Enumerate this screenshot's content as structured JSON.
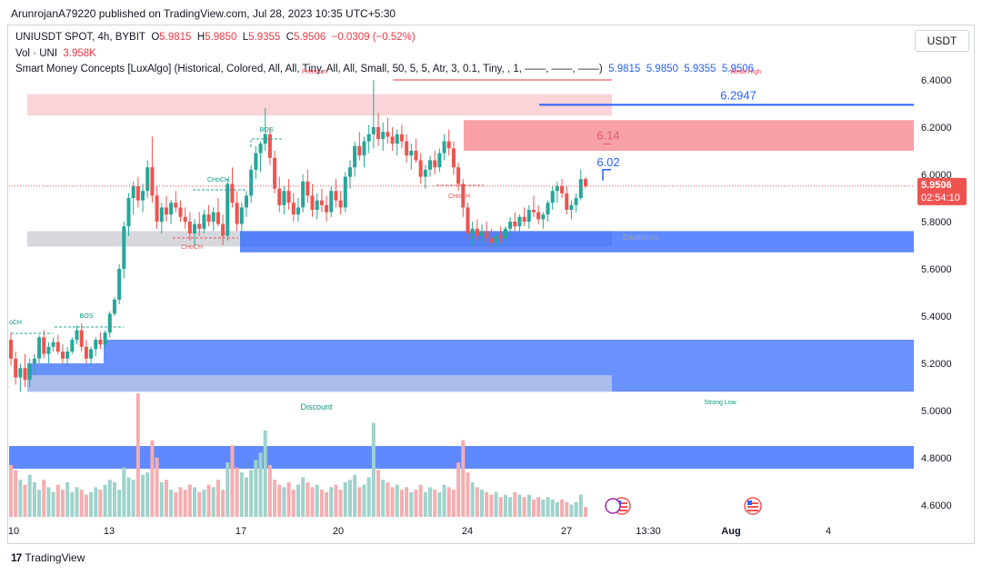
{
  "header": {
    "published": "ArunrojanA79220 published on TradingView.com, Jul 28, 2023 10:35 UTC+5:30"
  },
  "legend": {
    "symbol": "UNIUSDT SPOT, 4h, BYBIT",
    "o_label": "O",
    "o": "5.9815",
    "h_label": "H",
    "h": "5.9850",
    "l_label": "L",
    "l": "5.9355",
    "c_label": "C",
    "c": "5.9506",
    "change": "−0.0309 (−0.52%)",
    "vol_label": "Vol · UNI",
    "vol": "3.958K",
    "indicator": "Smart Money Concepts [LuxAlgo] (Historical, Colored, All, All, Tiny, All, All, Small, 50, 5, 5, Atr, 3, 0.1, Tiny, , 1, ——, ——, ——)",
    "ind_values": [
      "5.9815",
      "5.9850",
      "5.9355",
      "5.9506"
    ]
  },
  "currency_button": "USDT",
  "footer": {
    "brand": "TradingView",
    "mark": "17"
  },
  "colors": {
    "up": "#26a69a",
    "down": "#ef5350",
    "vol_up": "#9ed3cc",
    "vol_down": "#f5aeb0",
    "blue_zone": "#2962ff",
    "red_zone": "#f23645",
    "grey_zone": "#b2b5be",
    "axis_text": "#131722",
    "price_tag": "#ef5350"
  },
  "chart_data": {
    "type": "candlestick",
    "symbol": "UNIUSDT",
    "interval": "4h",
    "y_ticks": [
      "6.4000",
      "6.2000",
      "6.0000",
      "5.8000",
      "5.6000",
      "5.4000",
      "5.2000",
      "5.0000",
      "4.8000",
      "4.6000"
    ],
    "y_tick_values": [
      6.4,
      6.2,
      6.0,
      5.8,
      5.6,
      5.4,
      5.2,
      5.0,
      4.8,
      4.6
    ],
    "ylim": [
      4.58,
      6.45
    ],
    "x_ticks": [
      "10",
      "13",
      "17",
      "20",
      "24",
      "27",
      "13:30",
      "Aug",
      "4"
    ],
    "x_tick_bold": [
      false,
      false,
      false,
      false,
      false,
      false,
      false,
      true,
      false
    ],
    "last_price": "5.9506",
    "countdown": "02:54:10",
    "candles": [
      [
        5.3,
        5.33,
        5.19,
        5.22
      ],
      [
        5.22,
        5.25,
        5.11,
        5.14
      ],
      [
        5.14,
        5.2,
        5.08,
        5.18
      ],
      [
        5.18,
        5.24,
        5.1,
        5.13
      ],
      [
        5.13,
        5.22,
        5.1,
        5.2
      ],
      [
        5.2,
        5.24,
        5.15,
        5.22
      ],
      [
        5.22,
        5.32,
        5.2,
        5.31
      ],
      [
        5.31,
        5.34,
        5.22,
        5.24
      ],
      [
        5.24,
        5.29,
        5.2,
        5.27
      ],
      [
        5.27,
        5.31,
        5.25,
        5.29
      ],
      [
        5.29,
        5.32,
        5.24,
        5.25
      ],
      [
        5.25,
        5.28,
        5.2,
        5.22
      ],
      [
        5.22,
        5.27,
        5.19,
        5.25
      ],
      [
        5.25,
        5.31,
        5.24,
        5.3
      ],
      [
        5.3,
        5.36,
        5.28,
        5.34
      ],
      [
        5.34,
        5.37,
        5.25,
        5.27
      ],
      [
        5.27,
        5.3,
        5.2,
        5.22
      ],
      [
        5.22,
        5.27,
        5.19,
        5.26
      ],
      [
        5.26,
        5.31,
        5.23,
        5.3
      ],
      [
        5.3,
        5.33,
        5.26,
        5.28
      ],
      [
        5.28,
        5.34,
        5.26,
        5.33
      ],
      [
        5.33,
        5.42,
        5.31,
        5.41
      ],
      [
        5.41,
        5.48,
        5.4,
        5.47
      ],
      [
        5.47,
        5.62,
        5.45,
        5.6
      ],
      [
        5.6,
        5.8,
        5.56,
        5.78
      ],
      [
        5.78,
        5.92,
        5.74,
        5.9
      ],
      [
        5.9,
        5.97,
        5.83,
        5.95
      ],
      [
        5.95,
        5.99,
        5.86,
        5.89
      ],
      [
        5.89,
        5.96,
        5.84,
        5.93
      ],
      [
        5.93,
        6.06,
        5.9,
        6.03
      ],
      [
        6.03,
        6.16,
        5.88,
        5.91
      ],
      [
        5.91,
        5.95,
        5.77,
        5.8
      ],
      [
        5.8,
        5.88,
        5.75,
        5.86
      ],
      [
        5.86,
        5.91,
        5.8,
        5.83
      ],
      [
        5.83,
        5.89,
        5.79,
        5.88
      ],
      [
        5.88,
        5.93,
        5.84,
        5.86
      ],
      [
        5.86,
        5.89,
        5.8,
        5.82
      ],
      [
        5.82,
        5.86,
        5.77,
        5.8
      ],
      [
        5.8,
        5.84,
        5.72,
        5.75
      ],
      [
        5.75,
        5.81,
        5.69,
        5.79
      ],
      [
        5.79,
        5.84,
        5.74,
        5.77
      ],
      [
        5.77,
        5.85,
        5.75,
        5.83
      ],
      [
        5.83,
        5.87,
        5.78,
        5.8
      ],
      [
        5.8,
        5.86,
        5.76,
        5.84
      ],
      [
        5.84,
        5.9,
        5.78,
        5.79
      ],
      [
        5.79,
        5.83,
        5.7,
        5.74
      ],
      [
        5.74,
        5.98,
        5.72,
        5.96
      ],
      [
        5.96,
        6.03,
        5.86,
        5.88
      ],
      [
        5.88,
        5.93,
        5.76,
        5.79
      ],
      [
        5.79,
        5.88,
        5.72,
        5.86
      ],
      [
        5.86,
        5.93,
        5.82,
        5.91
      ],
      [
        5.91,
        6.04,
        5.88,
        6.02
      ],
      [
        6.02,
        6.12,
        5.98,
        6.09
      ],
      [
        6.09,
        6.14,
        6.01,
        6.13
      ],
      [
        6.13,
        6.28,
        6.1,
        6.17
      ],
      [
        6.17,
        6.2,
        6.04,
        6.07
      ],
      [
        6.07,
        6.1,
        5.92,
        5.94
      ],
      [
        5.94,
        5.99,
        5.84,
        5.87
      ],
      [
        5.87,
        5.95,
        5.83,
        5.93
      ],
      [
        5.93,
        5.98,
        5.85,
        5.88
      ],
      [
        5.88,
        5.92,
        5.8,
        5.83
      ],
      [
        5.83,
        5.9,
        5.8,
        5.86
      ],
      [
        5.86,
        6.0,
        5.84,
        5.97
      ],
      [
        5.97,
        6.02,
        5.88,
        5.91
      ],
      [
        5.91,
        5.96,
        5.82,
        5.85
      ],
      [
        5.85,
        5.92,
        5.81,
        5.89
      ],
      [
        5.89,
        5.94,
        5.84,
        5.87
      ],
      [
        5.87,
        5.91,
        5.8,
        5.84
      ],
      [
        5.84,
        5.95,
        5.82,
        5.93
      ],
      [
        5.93,
        5.98,
        5.86,
        5.89
      ],
      [
        5.89,
        5.93,
        5.83,
        5.86
      ],
      [
        5.86,
        6.01,
        5.84,
        5.99
      ],
      [
        5.99,
        6.06,
        5.94,
        6.03
      ],
      [
        6.03,
        6.14,
        5.99,
        6.12
      ],
      [
        6.12,
        6.18,
        6.06,
        6.08
      ],
      [
        6.08,
        6.16,
        6.03,
        6.14
      ],
      [
        6.14,
        6.21,
        6.09,
        6.17
      ],
      [
        6.17,
        6.4,
        6.11,
        6.2
      ],
      [
        6.2,
        6.26,
        6.12,
        6.15
      ],
      [
        6.15,
        6.22,
        6.1,
        6.18
      ],
      [
        6.18,
        6.24,
        6.13,
        6.16
      ],
      [
        6.16,
        6.2,
        6.1,
        6.13
      ],
      [
        6.13,
        6.19,
        6.08,
        6.17
      ],
      [
        6.17,
        6.21,
        6.11,
        6.14
      ],
      [
        6.14,
        6.17,
        6.05,
        6.08
      ],
      [
        6.08,
        6.13,
        6.02,
        6.1
      ],
      [
        6.1,
        6.15,
        6.05,
        6.06
      ],
      [
        6.06,
        6.09,
        5.96,
        5.99
      ],
      [
        5.99,
        6.04,
        5.94,
        6.02
      ],
      [
        6.02,
        6.08,
        5.99,
        6.06
      ],
      [
        6.06,
        6.1,
        6.0,
        6.03
      ],
      [
        6.03,
        6.11,
        6.01,
        6.09
      ],
      [
        6.09,
        6.17,
        6.06,
        6.14
      ],
      [
        6.14,
        6.19,
        6.08,
        6.11
      ],
      [
        6.11,
        6.14,
        6.0,
        6.03
      ],
      [
        6.03,
        6.05,
        5.93,
        5.96
      ],
      [
        5.96,
        5.98,
        5.82,
        5.86
      ],
      [
        5.86,
        5.88,
        5.72,
        5.75
      ],
      [
        5.75,
        5.8,
        5.7,
        5.77
      ],
      [
        5.77,
        5.81,
        5.72,
        5.74
      ],
      [
        5.74,
        5.79,
        5.7,
        5.76
      ],
      [
        5.76,
        5.8,
        5.71,
        5.73
      ],
      [
        5.73,
        5.77,
        5.69,
        5.71
      ],
      [
        5.71,
        5.75,
        5.69,
        5.74
      ],
      [
        5.74,
        5.78,
        5.71,
        5.73
      ],
      [
        5.73,
        5.78,
        5.7,
        5.77
      ],
      [
        5.77,
        5.82,
        5.74,
        5.8
      ],
      [
        5.8,
        5.84,
        5.76,
        5.78
      ],
      [
        5.78,
        5.83,
        5.75,
        5.82
      ],
      [
        5.82,
        5.86,
        5.78,
        5.8
      ],
      [
        5.8,
        5.87,
        5.77,
        5.85
      ],
      [
        5.85,
        5.91,
        5.82,
        5.84
      ],
      [
        5.84,
        5.87,
        5.79,
        5.81
      ],
      [
        5.81,
        5.84,
        5.77,
        5.83
      ],
      [
        5.83,
        5.89,
        5.8,
        5.88
      ],
      [
        5.88,
        5.95,
        5.85,
        5.93
      ],
      [
        5.93,
        5.97,
        5.88,
        5.95
      ],
      [
        5.95,
        5.98,
        5.9,
        5.92
      ],
      [
        5.92,
        5.95,
        5.83,
        5.85
      ],
      [
        5.85,
        5.89,
        5.81,
        5.87
      ],
      [
        5.87,
        5.92,
        5.84,
        5.9
      ],
      [
        5.9,
        6.02,
        5.89,
        5.98
      ],
      [
        5.98,
        5.99,
        5.94,
        5.95
      ]
    ],
    "volumes": [
      0.42,
      0.38,
      0.3,
      0.26,
      0.34,
      0.28,
      0.22,
      0.3,
      0.24,
      0.2,
      0.26,
      0.22,
      0.28,
      0.2,
      0.24,
      0.22,
      0.18,
      0.2,
      0.24,
      0.22,
      0.26,
      0.3,
      0.28,
      0.22,
      0.4,
      0.32,
      0.3,
      1.0,
      0.34,
      0.36,
      0.62,
      0.48,
      0.28,
      0.3,
      0.22,
      0.2,
      0.24,
      0.22,
      0.26,
      0.24,
      0.2,
      0.22,
      0.26,
      0.24,
      0.3,
      0.22,
      0.44,
      0.58,
      0.4,
      0.36,
      0.32,
      0.38,
      0.46,
      0.52,
      0.7,
      0.42,
      0.3,
      0.26,
      0.24,
      0.28,
      0.22,
      0.26,
      0.32,
      0.28,
      0.24,
      0.26,
      0.22,
      0.2,
      0.24,
      0.26,
      0.22,
      0.28,
      0.3,
      0.34,
      0.24,
      0.26,
      0.32,
      0.76,
      0.38,
      0.3,
      0.28,
      0.24,
      0.26,
      0.22,
      0.24,
      0.2,
      0.22,
      0.26,
      0.2,
      0.24,
      0.22,
      0.2,
      0.26,
      0.24,
      0.22,
      0.44,
      0.62,
      0.36,
      0.28,
      0.24,
      0.22,
      0.2,
      0.18,
      0.2,
      0.16,
      0.18,
      0.16,
      0.2,
      0.18,
      0.16,
      0.18,
      0.14,
      0.16,
      0.14,
      0.16,
      0.14,
      0.12,
      0.14,
      0.12,
      0.1,
      0.12,
      0.18,
      0.08
    ]
  },
  "annotations": {
    "price_labels": {
      "p6294": "6.2947",
      "p614": "6.14",
      "p602": "6.02"
    },
    "text_labels": {
      "bos1": "BOS",
      "bos2": "BOS",
      "choch_a": "CHoCH",
      "choch_b": "CHoCH",
      "choch_c": "CHoCH",
      "choch_left": "oCH",
      "weak_high": "Weak High",
      "equilibrium": "Equilibrium",
      "discount": "Discount",
      "strong_low": "Strong Low",
      "premium": "Premium"
    }
  }
}
